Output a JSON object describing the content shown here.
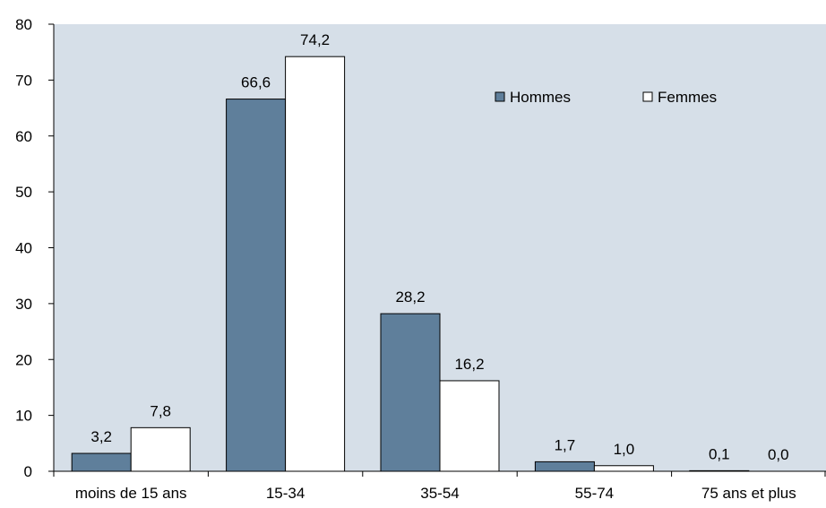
{
  "chart_data": {
    "type": "bar",
    "categories": [
      "moins de 15 ans",
      "15-34",
      "35-54",
      "55-74",
      "75 ans et plus"
    ],
    "series": [
      {
        "name": "Hommes",
        "values": [
          3.2,
          66.6,
          28.2,
          1.7,
          0.1
        ],
        "labels": [
          "3,2",
          "66,6",
          "28,2",
          "1,7",
          "0,1"
        ],
        "color": "#5f7f9b"
      },
      {
        "name": "Femmes",
        "values": [
          7.8,
          74.2,
          16.2,
          1.0,
          0.0
        ],
        "labels": [
          "7,8",
          "74,2",
          "16,2",
          "1,0",
          "0,0"
        ],
        "color": "#ffffff"
      }
    ],
    "ylim": [
      0,
      80
    ],
    "yticks": [
      0,
      10,
      20,
      30,
      40,
      50,
      60,
      70,
      80
    ],
    "title": "",
    "xlabel": "",
    "ylabel": "",
    "legend_position": "top-right",
    "plot_background": "#d6dfe8",
    "grid": false
  }
}
